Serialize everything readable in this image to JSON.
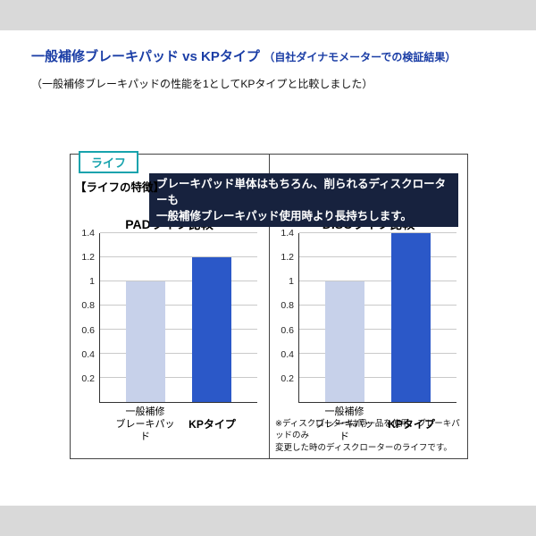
{
  "header": {
    "title": "一般補修ブレーキパッド vs KPタイプ",
    "title_note": "（自社ダイナモメーターでの検証結果）",
    "subtitle": "（一般補修ブレーキパッドの性能を1としてKPタイプと比較しました）"
  },
  "panel": {
    "tab_label": "ライフ",
    "feature_label": "【ライフの特徴】",
    "feature_text": [
      "ブレーキパッド単体はもちろん、削られるディスクローターも",
      "一般補修ブレーキパッド使用時より長持ちします。"
    ],
    "footnote": [
      "※ディスクローターは同一品を使用、ブレーキパッドのみ",
      "変更した時のディスクローターのライフです。"
    ]
  },
  "colors": {
    "title_blue": "#1b3ea6",
    "tab_teal": "#17a3ad",
    "feature_bg": "#17223e",
    "band_gray": "#d9d9d9",
    "bar_standard": "#c7d1ea",
    "bar_kp": "#2b58c8"
  },
  "chart_data": [
    {
      "type": "bar",
      "title": "PADライフ比較",
      "categories": [
        [
          "一般補修",
          "ブレーキパッド"
        ],
        [
          "KPタイプ"
        ]
      ],
      "values": [
        1,
        1.2
      ],
      "ylim": [
        0,
        1.4
      ],
      "ticks": [
        0.2,
        0.4,
        0.6,
        0.8,
        1,
        1.2,
        1.4
      ],
      "grid": true,
      "legend": "none",
      "bar_colors": [
        "#c7d1ea",
        "#2b58c8"
      ]
    },
    {
      "type": "bar",
      "title": "DISCライフ比較",
      "categories": [
        [
          "一般補修",
          "ブレーキパッド"
        ],
        [
          "KPタイプ"
        ]
      ],
      "values": [
        1,
        1.4
      ],
      "ylim": [
        0,
        1.4
      ],
      "ticks": [
        0.2,
        0.4,
        0.6,
        0.8,
        1,
        1.2,
        1.4
      ],
      "grid": true,
      "legend": "none",
      "bar_colors": [
        "#c7d1ea",
        "#2b58c8"
      ]
    }
  ]
}
